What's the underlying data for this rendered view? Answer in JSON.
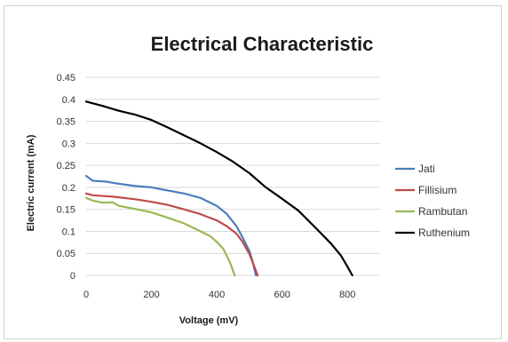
{
  "chart_data": {
    "type": "line",
    "title": "Electrical Characteristic",
    "xlabel": "Voltage (mV)",
    "ylabel": "Electric current (mA)",
    "xlim": [
      0,
      900
    ],
    "ylim": [
      0,
      0.45
    ],
    "x_ticks": [
      "0",
      "200",
      "400",
      "600",
      "800"
    ],
    "y_ticks": [
      "0",
      "0.05",
      "0.1",
      "0.15",
      "0.2",
      "0.25",
      "0.3",
      "0.35",
      "0.4",
      "0.45"
    ],
    "grid": "horizontal",
    "legend_position": "right",
    "series": [
      {
        "name": "Jati",
        "color": "#4a7ebb",
        "points": [
          [
            0,
            0.226
          ],
          [
            20,
            0.215
          ],
          [
            60,
            0.213
          ],
          [
            100,
            0.208
          ],
          [
            150,
            0.203
          ],
          [
            200,
            0.2
          ],
          [
            250,
            0.193
          ],
          [
            300,
            0.186
          ],
          [
            350,
            0.176
          ],
          [
            400,
            0.158
          ],
          [
            430,
            0.14
          ],
          [
            460,
            0.112
          ],
          [
            480,
            0.085
          ],
          [
            500,
            0.055
          ],
          [
            510,
            0.03
          ],
          [
            520,
            0.0
          ]
        ]
      },
      {
        "name": "Fillisium",
        "color": "#be4b48",
        "points": [
          [
            0,
            0.186
          ],
          [
            20,
            0.182
          ],
          [
            80,
            0.179
          ],
          [
            150,
            0.173
          ],
          [
            200,
            0.167
          ],
          [
            250,
            0.16
          ],
          [
            300,
            0.15
          ],
          [
            350,
            0.139
          ],
          [
            400,
            0.125
          ],
          [
            430,
            0.112
          ],
          [
            460,
            0.095
          ],
          [
            480,
            0.075
          ],
          [
            500,
            0.048
          ],
          [
            515,
            0.02
          ],
          [
            525,
            0.0
          ]
        ]
      },
      {
        "name": "Rambutan",
        "color": "#98b954",
        "points": [
          [
            0,
            0.176
          ],
          [
            20,
            0.17
          ],
          [
            50,
            0.165
          ],
          [
            80,
            0.166
          ],
          [
            100,
            0.158
          ],
          [
            150,
            0.151
          ],
          [
            200,
            0.143
          ],
          [
            250,
            0.131
          ],
          [
            300,
            0.118
          ],
          [
            350,
            0.1
          ],
          [
            380,
            0.089
          ],
          [
            400,
            0.076
          ],
          [
            420,
            0.06
          ],
          [
            440,
            0.03
          ],
          [
            455,
            0.0
          ]
        ]
      },
      {
        "name": "Ruthenium",
        "color": "#000000",
        "points": [
          [
            0,
            0.395
          ],
          [
            50,
            0.385
          ],
          [
            100,
            0.374
          ],
          [
            150,
            0.365
          ],
          [
            200,
            0.353
          ],
          [
            250,
            0.336
          ],
          [
            300,
            0.318
          ],
          [
            350,
            0.3
          ],
          [
            400,
            0.28
          ],
          [
            450,
            0.258
          ],
          [
            500,
            0.232
          ],
          [
            550,
            0.2
          ],
          [
            600,
            0.174
          ],
          [
            650,
            0.147
          ],
          [
            700,
            0.11
          ],
          [
            750,
            0.072
          ],
          [
            780,
            0.045
          ],
          [
            800,
            0.02
          ],
          [
            815,
            0.0
          ]
        ]
      }
    ]
  }
}
